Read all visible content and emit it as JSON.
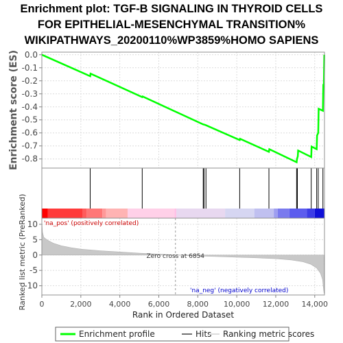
{
  "title_lines": [
    "Enrichment plot: TGF-B SIGNALING IN THYROID CELLS",
    "FOR EPITHELIAL-MESENCHYMAL TRANSITION%",
    "WIKIPATHWAYS_20200110%WP3859%HOMO SAPIENS"
  ],
  "chart_data": {
    "type": "line",
    "xlabel": "Rank in Ordered Dataset",
    "x_range": [
      0,
      14500
    ],
    "x_ticks": [
      0,
      2000,
      4000,
      6000,
      8000,
      10000,
      12000,
      14000
    ],
    "x_tick_labels": [
      "0",
      "2,000",
      "4,000",
      "6,000",
      "8,000",
      "10,000",
      "12,000",
      "14,000"
    ],
    "es_panel": {
      "ylabel": "Enrichment score (ES)",
      "ylim": [
        -0.87,
        0.02
      ],
      "y_ticks": [
        0.0,
        -0.1,
        -0.2,
        -0.3,
        -0.4,
        -0.5,
        -0.6,
        -0.7,
        -0.8
      ],
      "y_tick_labels": [
        "0.0",
        "-0.1",
        "-0.2",
        "-0.3",
        "-0.4",
        "-0.5",
        "-0.6",
        "-0.7",
        "-0.8"
      ],
      "series": [
        {
          "name": "Enrichment profile",
          "color": "#00ff00",
          "points": [
            [
              0,
              0.0
            ],
            [
              2480,
              -0.165
            ],
            [
              2500,
              -0.145
            ],
            [
              5150,
              -0.325
            ],
            [
              5170,
              -0.32
            ],
            [
              8280,
              -0.535
            ],
            [
              8300,
              -0.535
            ],
            [
              8400,
              -0.54
            ],
            [
              10150,
              -0.655
            ],
            [
              10170,
              -0.645
            ],
            [
              11650,
              -0.745
            ],
            [
              11670,
              -0.725
            ],
            [
              13070,
              -0.825
            ],
            [
              13090,
              -0.8
            ],
            [
              13130,
              -0.78
            ],
            [
              13150,
              -0.735
            ],
            [
              13820,
              -0.785
            ],
            [
              13840,
              -0.705
            ],
            [
              14100,
              -0.725
            ],
            [
              14120,
              -0.62
            ],
            [
              14180,
              -0.6
            ],
            [
              14200,
              -0.415
            ],
            [
              14420,
              -0.43
            ],
            [
              14440,
              -0.23
            ],
            [
              14470,
              -0.225
            ],
            [
              14490,
              0.0
            ]
          ]
        }
      ]
    },
    "hits_panel": {
      "hit_positions": [
        2480,
        5150,
        8280,
        8320,
        8420,
        10150,
        11650,
        13070,
        13110,
        13820,
        14100,
        14180,
        14420
      ],
      "heatmap_colors": [
        "#ff0000",
        "#ff3b3b",
        "#ff5c5c",
        "#ff7777",
        "#ff9999",
        "#ffb3b3",
        "#ffd0e8",
        "#ffc0e6",
        "#e8d8f0",
        "#d6d6f2",
        "#c0c0f0",
        "#9e9ef0",
        "#7a7aee",
        "#5c5cee",
        "#3c3ce6",
        "#1010d8"
      ],
      "heatmap_breaks": [
        0,
        300,
        2100,
        2300,
        3100,
        3300,
        4400,
        6800,
        6900,
        9400,
        10900,
        11900,
        12100,
        12700,
        13600,
        14000,
        14500
      ]
    },
    "metric_panel": {
      "ylabel": "Ranked list metric (PreRanked)",
      "ylim": [
        -13,
        12
      ],
      "y_ticks": [
        10,
        5,
        0,
        -5,
        -10
      ],
      "y_tick_labels": [
        "10",
        "5",
        "0",
        "-5",
        "-10"
      ],
      "pos_label": "'na_pos' (positively correlated)",
      "neg_label": "'na_neg' (negatively correlated)",
      "zero_cross_text": "Zero cross at 6854",
      "zero_cross_rank": 6854,
      "fill_color": "#c8c8c8",
      "curve": [
        [
          0,
          11.0
        ],
        [
          30,
          7.5
        ],
        [
          100,
          5.8
        ],
        [
          300,
          4.8
        ],
        [
          600,
          3.8
        ],
        [
          1000,
          3.0
        ],
        [
          1500,
          2.4
        ],
        [
          2000,
          1.9
        ],
        [
          3000,
          1.4
        ],
        [
          4000,
          1.0
        ],
        [
          5000,
          0.6
        ],
        [
          6000,
          0.3
        ],
        [
          6854,
          0.0
        ],
        [
          8000,
          -0.3
        ],
        [
          9000,
          -0.5
        ],
        [
          10000,
          -0.7
        ],
        [
          11000,
          -0.9
        ],
        [
          12000,
          -1.2
        ],
        [
          12800,
          -1.6
        ],
        [
          13400,
          -2.2
        ],
        [
          13800,
          -3.0
        ],
        [
          14100,
          -4.2
        ],
        [
          14300,
          -6.0
        ],
        [
          14400,
          -8.0
        ],
        [
          14450,
          -11.0
        ],
        [
          14480,
          -12.5
        ]
      ]
    },
    "legend": {
      "items": [
        {
          "name": "Enrichment profile",
          "color": "#00ff00"
        },
        {
          "name": "Hits",
          "color": "#707070"
        },
        {
          "name": "Ranking metric scores",
          "color": "#dcdcdc"
        }
      ]
    }
  }
}
